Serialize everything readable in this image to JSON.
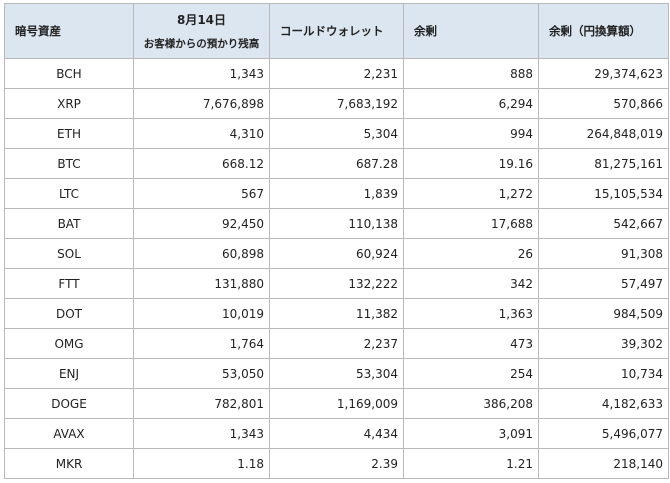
{
  "table": {
    "headers": {
      "asset": "暗号資産",
      "date": "8月14日",
      "deposits": "お客様からの預かり残高",
      "cold_wallet": "コールドウォレット",
      "surplus": "余剰",
      "surplus_jpy": "余剰（円換算額）"
    },
    "rows": [
      {
        "asset": "BCH",
        "deposits": "1,343",
        "cold_wallet": "2,231",
        "surplus": "888",
        "surplus_jpy": "29,374,623"
      },
      {
        "asset": "XRP",
        "deposits": "7,676,898",
        "cold_wallet": "7,683,192",
        "surplus": "6,294",
        "surplus_jpy": "570,866"
      },
      {
        "asset": "ETH",
        "deposits": "4,310",
        "cold_wallet": "5,304",
        "surplus": "994",
        "surplus_jpy": "264,848,019"
      },
      {
        "asset": "BTC",
        "deposits": "668.12",
        "cold_wallet": "687.28",
        "surplus": "19.16",
        "surplus_jpy": "81,275,161"
      },
      {
        "asset": "LTC",
        "deposits": "567",
        "cold_wallet": "1,839",
        "surplus": "1,272",
        "surplus_jpy": "15,105,534"
      },
      {
        "asset": "BAT",
        "deposits": "92,450",
        "cold_wallet": "110,138",
        "surplus": "17,688",
        "surplus_jpy": "542,667"
      },
      {
        "asset": "SOL",
        "deposits": "60,898",
        "cold_wallet": "60,924",
        "surplus": "26",
        "surplus_jpy": "91,308"
      },
      {
        "asset": "FTT",
        "deposits": "131,880",
        "cold_wallet": "132,222",
        "surplus": "342",
        "surplus_jpy": "57,497"
      },
      {
        "asset": "DOT",
        "deposits": "10,019",
        "cold_wallet": "11,382",
        "surplus": "1,363",
        "surplus_jpy": "984,509"
      },
      {
        "asset": "OMG",
        "deposits": "1,764",
        "cold_wallet": "2,237",
        "surplus": "473",
        "surplus_jpy": "39,302"
      },
      {
        "asset": "ENJ",
        "deposits": "53,050",
        "cold_wallet": "53,304",
        "surplus": "254",
        "surplus_jpy": "10,734"
      },
      {
        "asset": "DOGE",
        "deposits": "782,801",
        "cold_wallet": "1,169,009",
        "surplus": "386,208",
        "surplus_jpy": "4,182,633"
      },
      {
        "asset": "AVAX",
        "deposits": "1,343",
        "cold_wallet": "4,434",
        "surplus": "3,091",
        "surplus_jpy": "5,496,077"
      },
      {
        "asset": "MKR",
        "deposits": "1.18",
        "cold_wallet": "2.39",
        "surplus": "1.21",
        "surplus_jpy": "218,140"
      }
    ]
  }
}
